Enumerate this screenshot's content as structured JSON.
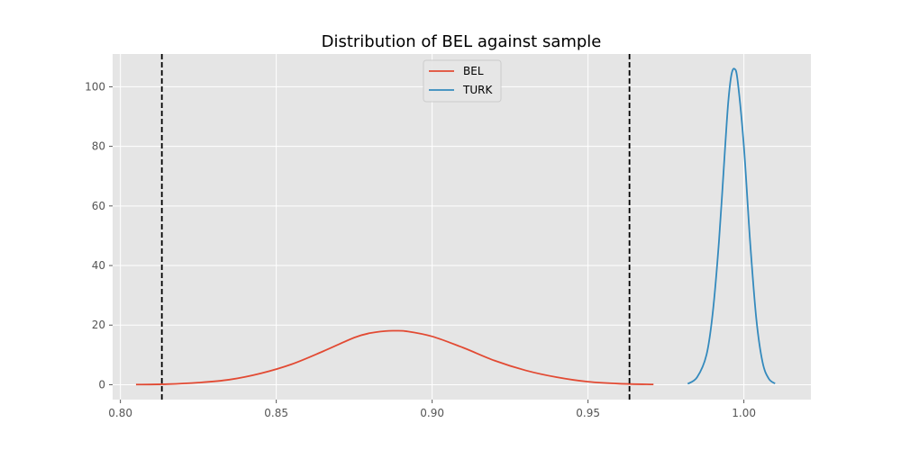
{
  "chart_data": {
    "type": "line",
    "title": "Distribution of BEL against sample",
    "xlabel": "",
    "ylabel": "",
    "xlim": [
      0.7975,
      1.0215
    ],
    "ylim": [
      -5,
      111
    ],
    "xticks": [
      0.8,
      0.85,
      0.9,
      0.95,
      1.0
    ],
    "xtick_labels": [
      "0.80",
      "0.85",
      "0.90",
      "0.95",
      "1.00"
    ],
    "yticks": [
      0,
      20,
      40,
      60,
      80,
      100
    ],
    "ytick_labels": [
      "0",
      "20",
      "40",
      "60",
      "80",
      "100"
    ],
    "grid": true,
    "legend_position": "top-center",
    "series": [
      {
        "name": "BEL",
        "color": "#e24a33",
        "x": [
          0.805,
          0.815,
          0.825,
          0.835,
          0.845,
          0.855,
          0.865,
          0.875,
          0.88,
          0.885,
          0.888,
          0.892,
          0.9,
          0.91,
          0.92,
          0.93,
          0.94,
          0.95,
          0.96,
          0.971
        ],
        "y": [
          0.05,
          0.2,
          0.7,
          1.7,
          3.8,
          6.9,
          11.2,
          15.8,
          17.3,
          18.0,
          18.1,
          17.9,
          16.2,
          12.4,
          8.1,
          4.8,
          2.5,
          1.0,
          0.35,
          0.1
        ]
      },
      {
        "name": "TURK",
        "color": "#348abd",
        "x": [
          0.982,
          0.985,
          0.988,
          0.99,
          0.992,
          0.994,
          0.995,
          0.996,
          0.997,
          0.998,
          1.0,
          1.002,
          1.004,
          1.006,
          1.008,
          1.01
        ],
        "y": [
          0.3,
          2.5,
          10.0,
          24.0,
          48.0,
          80.0,
          95.0,
          104.0,
          106.0,
          102.0,
          80.0,
          48.0,
          22.0,
          7.5,
          2.0,
          0.4
        ]
      }
    ],
    "vlines": [
      {
        "x": 0.8133,
        "style": "dashed",
        "color": "#000000"
      },
      {
        "x": 0.9633,
        "style": "dashed",
        "color": "#000000"
      }
    ],
    "background_color": "#e5e5e5",
    "grid_color": "#ffffff"
  }
}
